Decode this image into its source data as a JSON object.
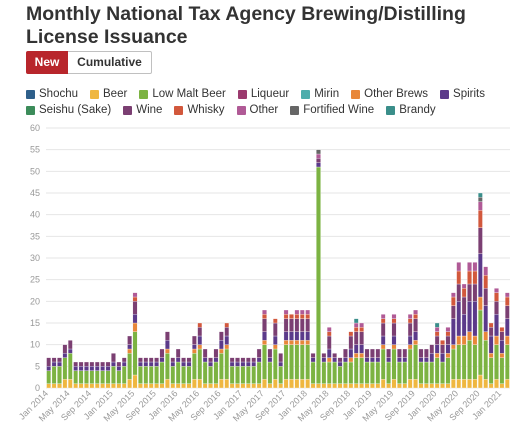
{
  "page": {
    "title": "Monthly National Tax Agency Brewing/Distilling License Issuance"
  },
  "toggle": {
    "new_label": "New",
    "cumulative_label": "Cumulative",
    "selected": "New"
  },
  "chart_data": {
    "type": "bar",
    "stacked": true,
    "title": "Monthly National Tax Agency Brewing/Distilling License Issuance",
    "xlabel": "",
    "ylabel": "",
    "ylim": [
      0,
      60
    ],
    "yticks": [
      0,
      5,
      10,
      15,
      20,
      25,
      30,
      35,
      40,
      45,
      50,
      55,
      60
    ],
    "grid": true,
    "legend_position": "top",
    "x_tick_labels": [
      "Jan 2014",
      "May 2014",
      "Sep 2014",
      "Jan 2015",
      "May 2015",
      "Sep 2015",
      "Jan 2016",
      "May 2016",
      "Sep 2016",
      "Jan 2017",
      "May 2017",
      "Sep 2017",
      "Jan 2018",
      "May 2018",
      "Sep 2018",
      "Jan 2019",
      "May 2019",
      "Sep 2019",
      "Jan 2020",
      "May 2020",
      "Sep 2020",
      "Jan 2021"
    ],
    "x_tick_every": 4,
    "categories": [
      "Jan 2014",
      "Feb 2014",
      "Mar 2014",
      "Apr 2014",
      "May 2014",
      "Jun 2014",
      "Jul 2014",
      "Aug 2014",
      "Sep 2014",
      "Oct 2014",
      "Nov 2014",
      "Dec 2014",
      "Jan 2015",
      "Feb 2015",
      "Mar 2015",
      "Apr 2015",
      "May 2015",
      "Jun 2015",
      "Jul 2015",
      "Aug 2015",
      "Sep 2015",
      "Oct 2015",
      "Nov 2015",
      "Dec 2015",
      "Jan 2016",
      "Feb 2016",
      "Mar 2016",
      "Apr 2016",
      "May 2016",
      "Jun 2016",
      "Jul 2016",
      "Aug 2016",
      "Sep 2016",
      "Oct 2016",
      "Nov 2016",
      "Dec 2016",
      "Jan 2017",
      "Feb 2017",
      "Mar 2017",
      "Apr 2017",
      "May 2017",
      "Jun 2017",
      "Jul 2017",
      "Aug 2017",
      "Sep 2017",
      "Oct 2017",
      "Nov 2017",
      "Dec 2017",
      "Jan 2018",
      "Feb 2018",
      "Mar 2018",
      "Apr 2018",
      "May 2018",
      "Jun 2018",
      "Jul 2018",
      "Aug 2018",
      "Sep 2018",
      "Oct 2018",
      "Nov 2018",
      "Dec 2018",
      "Jan 2019",
      "Feb 2019",
      "Mar 2019",
      "Apr 2019",
      "May 2019",
      "Jun 2019",
      "Jul 2019",
      "Aug 2019",
      "Sep 2019",
      "Oct 2019",
      "Nov 2019",
      "Dec 2019",
      "Jan 2020",
      "Feb 2020",
      "Mar 2020",
      "Apr 2020",
      "May 2020",
      "Jun 2020",
      "Jul 2020",
      "Aug 2020",
      "Sep 2020",
      "Oct 2020",
      "Nov 2020",
      "Dec 2020",
      "Jan 2021",
      "Feb 2021"
    ],
    "series": [
      {
        "name": "Shochu",
        "color": "#2e5f8a",
        "values": [
          0,
          0,
          0,
          0,
          0,
          0,
          0,
          0,
          0,
          0,
          0,
          0,
          0,
          0,
          0,
          0,
          0,
          0,
          0,
          0,
          0,
          0,
          0,
          0,
          0,
          0,
          0,
          0,
          0,
          0,
          0,
          0,
          0,
          0,
          0,
          0,
          0,
          0,
          0,
          0,
          0,
          0,
          0,
          0,
          0,
          0,
          0,
          0,
          0,
          0,
          0,
          0,
          0,
          0,
          0,
          0,
          0,
          0,
          0,
          0,
          0,
          0,
          0,
          0,
          0,
          0,
          0,
          0,
          0,
          0,
          0,
          0,
          0,
          0,
          0,
          0,
          0,
          0,
          0,
          0,
          0,
          0,
          0,
          0,
          0,
          0
        ]
      },
      {
        "name": "Beer",
        "color": "#efb740",
        "values": [
          1,
          1,
          1,
          2,
          2,
          1,
          1,
          1,
          1,
          1,
          1,
          1,
          1,
          1,
          1,
          2,
          3,
          1,
          1,
          1,
          1,
          1,
          2,
          1,
          1,
          1,
          1,
          2,
          2,
          1,
          1,
          1,
          2,
          2,
          1,
          1,
          1,
          1,
          1,
          1,
          2,
          1,
          2,
          1,
          2,
          2,
          2,
          2,
          2,
          1,
          1,
          1,
          1,
          1,
          1,
          1,
          1,
          1,
          1,
          1,
          1,
          1,
          2,
          1,
          2,
          1,
          1,
          2,
          2,
          1,
          1,
          1,
          1,
          1,
          1,
          2,
          2,
          2,
          2,
          2,
          3,
          2,
          1,
          2,
          1,
          2
        ]
      },
      {
        "name": "Low Malt Beer",
        "color": "#7cb342",
        "values": [
          3,
          4,
          4,
          5,
          6,
          3,
          3,
          3,
          3,
          3,
          3,
          3,
          4,
          3,
          4,
          6,
          10,
          4,
          4,
          4,
          4,
          5,
          6,
          4,
          5,
          4,
          4,
          6,
          7,
          5,
          4,
          5,
          6,
          7,
          4,
          4,
          4,
          4,
          4,
          5,
          8,
          5,
          7,
          4,
          8,
          8,
          8,
          8,
          8,
          5,
          50,
          5,
          5,
          5,
          4,
          5,
          5,
          6,
          6,
          5,
          5,
          5,
          7,
          5,
          7,
          5,
          5,
          7,
          8,
          5,
          5,
          5,
          6,
          5,
          6,
          7,
          8,
          8,
          9,
          8,
          15,
          9,
          6,
          8,
          6,
          8
        ]
      },
      {
        "name": "Liqueur",
        "color": "#9b3a6e",
        "values": [
          0,
          0,
          0,
          0,
          0,
          0,
          0,
          0,
          0,
          0,
          0,
          0,
          0,
          0,
          0,
          0,
          0,
          0,
          0,
          0,
          0,
          0,
          0,
          0,
          0,
          0,
          0,
          0,
          0,
          0,
          0,
          0,
          0,
          0,
          0,
          0,
          0,
          0,
          0,
          0,
          0,
          0,
          0,
          0,
          0,
          0,
          0,
          0,
          0,
          0,
          0,
          0,
          0,
          0,
          0,
          0,
          0,
          0,
          0,
          0,
          0,
          0,
          0,
          0,
          0,
          0,
          0,
          0,
          0,
          0,
          0,
          0,
          0,
          0,
          0,
          0,
          0,
          0,
          0,
          0,
          0,
          0,
          0,
          0,
          0,
          0
        ]
      },
      {
        "name": "Mirin",
        "color": "#4dadac",
        "values": [
          0,
          0,
          0,
          0,
          0,
          0,
          0,
          0,
          0,
          0,
          0,
          0,
          0,
          0,
          0,
          0,
          0,
          0,
          0,
          0,
          0,
          0,
          0,
          0,
          0,
          0,
          0,
          0,
          0,
          0,
          0,
          0,
          0,
          0,
          0,
          0,
          0,
          0,
          0,
          0,
          0,
          0,
          0,
          0,
          0,
          0,
          0,
          0,
          0,
          0,
          0,
          0,
          0,
          0,
          0,
          0,
          0,
          0,
          0,
          0,
          0,
          0,
          0,
          0,
          0,
          0,
          0,
          0,
          0,
          0,
          0,
          0,
          0,
          0,
          0,
          0,
          0,
          0,
          0,
          0,
          0,
          0,
          0,
          0,
          0,
          0
        ]
      },
      {
        "name": "Other Brews",
        "color": "#e8873a",
        "values": [
          0,
          0,
          0,
          0,
          0,
          0,
          0,
          0,
          0,
          0,
          0,
          0,
          0,
          0,
          0,
          1,
          2,
          0,
          0,
          0,
          0,
          0,
          1,
          0,
          0,
          0,
          0,
          1,
          1,
          0,
          0,
          0,
          1,
          1,
          0,
          0,
          0,
          0,
          0,
          0,
          1,
          0,
          1,
          0,
          1,
          1,
          1,
          1,
          1,
          0,
          0,
          0,
          1,
          0,
          0,
          0,
          1,
          1,
          1,
          0,
          0,
          0,
          1,
          0,
          1,
          0,
          0,
          1,
          1,
          0,
          0,
          0,
          1,
          0,
          1,
          1,
          2,
          2,
          2,
          2,
          3,
          2,
          1,
          2,
          1,
          2
        ]
      },
      {
        "name": "Spirits",
        "color": "#5b3a8a",
        "values": [
          1,
          1,
          1,
          1,
          1,
          1,
          1,
          1,
          1,
          1,
          1,
          1,
          1,
          1,
          1,
          1,
          2,
          1,
          1,
          1,
          1,
          1,
          2,
          1,
          1,
          1,
          1,
          1,
          2,
          1,
          1,
          1,
          2,
          2,
          1,
          1,
          1,
          1,
          1,
          1,
          2,
          1,
          2,
          1,
          2,
          2,
          2,
          2,
          2,
          1,
          1,
          1,
          2,
          1,
          1,
          1,
          2,
          2,
          2,
          1,
          1,
          1,
          2,
          1,
          2,
          1,
          1,
          2,
          2,
          1,
          1,
          2,
          2,
          2,
          2,
          6,
          8,
          5,
          7,
          8,
          10,
          6,
          4,
          5,
          3,
          4
        ]
      },
      {
        "name": "Seishu (Sake)",
        "color": "#3c8c5a",
        "values": [
          0,
          0,
          0,
          0,
          0,
          0,
          0,
          0,
          0,
          0,
          0,
          0,
          0,
          0,
          0,
          0,
          0,
          0,
          0,
          0,
          0,
          0,
          0,
          0,
          0,
          0,
          0,
          0,
          0,
          0,
          0,
          0,
          0,
          0,
          0,
          0,
          0,
          0,
          0,
          0,
          0,
          0,
          0,
          0,
          0,
          0,
          0,
          0,
          0,
          0,
          0,
          0,
          0,
          0,
          0,
          0,
          0,
          0,
          0,
          0,
          0,
          0,
          0,
          0,
          0,
          0,
          0,
          0,
          0,
          0,
          0,
          0,
          0,
          0,
          0,
          0,
          0,
          0,
          0,
          0,
          0,
          0,
          0,
          0,
          0,
          0
        ]
      },
      {
        "name": "Wine",
        "color": "#7b3f72",
        "values": [
          2,
          1,
          1,
          2,
          2,
          1,
          1,
          1,
          1,
          1,
          1,
          1,
          2,
          1,
          1,
          2,
          3,
          1,
          1,
          1,
          1,
          2,
          2,
          1,
          2,
          1,
          1,
          2,
          2,
          2,
          1,
          2,
          2,
          2,
          1,
          1,
          1,
          1,
          1,
          2,
          3,
          2,
          3,
          2,
          3,
          3,
          3,
          3,
          3,
          1,
          1,
          1,
          3,
          1,
          1,
          2,
          3,
          3,
          3,
          2,
          2,
          2,
          3,
          2,
          3,
          2,
          2,
          3,
          3,
          2,
          2,
          2,
          2,
          2,
          2,
          3,
          4,
          4,
          4,
          4,
          6,
          4,
          2,
          3,
          2,
          3
        ]
      },
      {
        "name": "Whisky",
        "color": "#d2583c",
        "values": [
          0,
          0,
          0,
          0,
          0,
          0,
          0,
          0,
          0,
          0,
          0,
          0,
          0,
          0,
          0,
          0,
          1,
          0,
          0,
          0,
          0,
          0,
          0,
          0,
          0,
          0,
          0,
          0,
          1,
          0,
          0,
          0,
          0,
          1,
          0,
          0,
          0,
          0,
          0,
          0,
          1,
          0,
          1,
          0,
          1,
          1,
          1,
          1,
          1,
          0,
          0,
          0,
          1,
          0,
          0,
          0,
          1,
          1,
          1,
          0,
          0,
          0,
          1,
          0,
          1,
          0,
          0,
          1,
          1,
          0,
          0,
          0,
          1,
          1,
          1,
          2,
          3,
          2,
          3,
          3,
          4,
          3,
          1,
          2,
          1,
          2
        ]
      },
      {
        "name": "Other",
        "color": "#b05a96",
        "values": [
          0,
          0,
          0,
          0,
          0,
          0,
          0,
          0,
          0,
          0,
          0,
          0,
          0,
          0,
          0,
          0,
          1,
          0,
          0,
          0,
          0,
          0,
          0,
          0,
          0,
          0,
          0,
          0,
          0,
          0,
          0,
          0,
          0,
          0,
          0,
          0,
          0,
          0,
          0,
          0,
          1,
          0,
          0,
          0,
          1,
          0,
          1,
          1,
          1,
          0,
          1,
          0,
          1,
          0,
          0,
          0,
          0,
          1,
          1,
          0,
          0,
          0,
          1,
          0,
          1,
          0,
          0,
          1,
          1,
          0,
          0,
          0,
          1,
          0,
          1,
          1,
          2,
          1,
          2,
          2,
          2,
          2,
          0,
          1,
          0,
          1
        ]
      },
      {
        "name": "Fortified Wine",
        "color": "#666666",
        "values": [
          0,
          0,
          0,
          0,
          0,
          0,
          0,
          0,
          0,
          0,
          0,
          0,
          0,
          0,
          0,
          0,
          0,
          0,
          0,
          0,
          0,
          0,
          0,
          0,
          0,
          0,
          0,
          0,
          0,
          0,
          0,
          0,
          0,
          0,
          0,
          0,
          0,
          0,
          0,
          0,
          0,
          0,
          0,
          0,
          0,
          0,
          0,
          0,
          0,
          0,
          1,
          0,
          0,
          0,
          0,
          0,
          0,
          0,
          0,
          0,
          0,
          0,
          0,
          0,
          0,
          0,
          0,
          0,
          0,
          0,
          0,
          0,
          0,
          0,
          0,
          0,
          0,
          0,
          0,
          0,
          1,
          0,
          0,
          0,
          0,
          0
        ]
      },
      {
        "name": "Brandy",
        "color": "#3a8e8a",
        "values": [
          0,
          0,
          0,
          0,
          0,
          0,
          0,
          0,
          0,
          0,
          0,
          0,
          0,
          0,
          0,
          0,
          0,
          0,
          0,
          0,
          0,
          0,
          0,
          0,
          0,
          0,
          0,
          0,
          0,
          0,
          0,
          0,
          0,
          0,
          0,
          0,
          0,
          0,
          0,
          0,
          0,
          0,
          0,
          0,
          0,
          0,
          0,
          0,
          0,
          0,
          0,
          0,
          0,
          0,
          0,
          0,
          0,
          1,
          0,
          0,
          0,
          0,
          0,
          0,
          0,
          0,
          0,
          0,
          0,
          0,
          0,
          0,
          1,
          0,
          0,
          0,
          0,
          0,
          0,
          0,
          1,
          0,
          0,
          0,
          0,
          0
        ]
      }
    ]
  }
}
